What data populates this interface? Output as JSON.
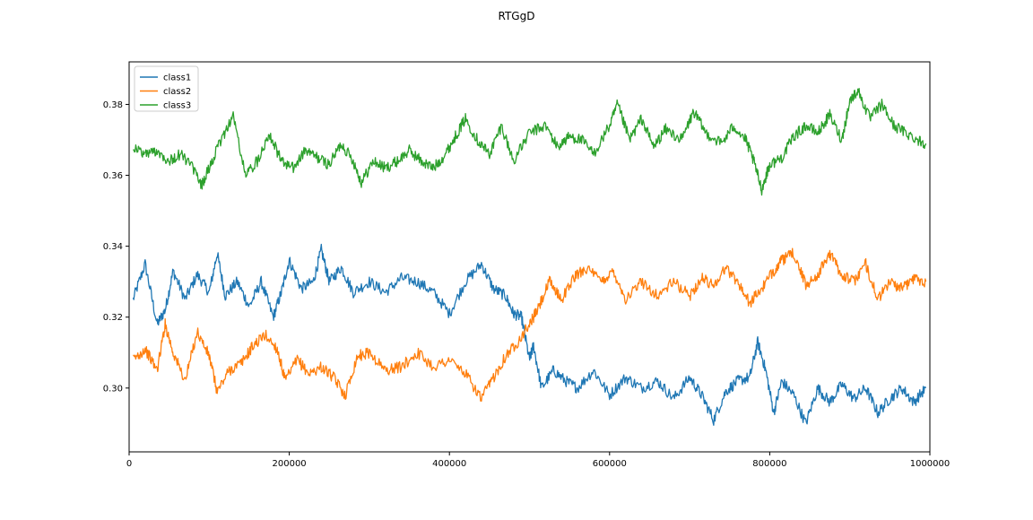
{
  "chart_data": {
    "type": "line",
    "title": "RTGgD",
    "xlabel": "",
    "ylabel": "",
    "xlim": [
      0,
      1000000
    ],
    "ylim": [
      0.282,
      0.392
    ],
    "x_ticks": [
      0,
      200000,
      400000,
      600000,
      800000,
      1000000
    ],
    "x_tick_labels": [
      "0",
      "200000",
      "400000",
      "600000",
      "800000",
      "1000000"
    ],
    "y_ticks": [
      0.3,
      0.32,
      0.34,
      0.36,
      0.38
    ],
    "y_tick_labels": [
      "0.30",
      "0.32",
      "0.34",
      "0.36",
      "0.38"
    ],
    "grid": false,
    "legend_position": "upper-left",
    "series": [
      {
        "name": "class1",
        "color": "#1f77b4",
        "x": [
          5000,
          20000,
          35000,
          45000,
          55000,
          70000,
          85000,
          100000,
          110000,
          120000,
          135000,
          150000,
          165000,
          180000,
          190000,
          200000,
          215000,
          230000,
          240000,
          250000,
          265000,
          280000,
          300000,
          320000,
          340000,
          360000,
          380000,
          400000,
          420000,
          440000,
          455000,
          470000,
          480000,
          490000,
          500000,
          505000,
          515000,
          530000,
          545000,
          560000,
          580000,
          600000,
          620000,
          640000,
          660000,
          680000,
          700000,
          715000,
          730000,
          745000,
          760000,
          775000,
          785000,
          795000,
          805000,
          815000,
          830000,
          845000,
          860000,
          875000,
          890000,
          905000,
          920000,
          935000,
          950000,
          965000,
          980000,
          995000
        ],
        "y": [
          0.325,
          0.335,
          0.318,
          0.322,
          0.333,
          0.325,
          0.332,
          0.327,
          0.338,
          0.326,
          0.33,
          0.323,
          0.33,
          0.32,
          0.327,
          0.336,
          0.328,
          0.33,
          0.339,
          0.33,
          0.334,
          0.327,
          0.33,
          0.327,
          0.331,
          0.33,
          0.327,
          0.321,
          0.33,
          0.335,
          0.328,
          0.326,
          0.321,
          0.32,
          0.308,
          0.312,
          0.3,
          0.305,
          0.302,
          0.3,
          0.305,
          0.298,
          0.303,
          0.3,
          0.302,
          0.297,
          0.303,
          0.298,
          0.291,
          0.299,
          0.302,
          0.303,
          0.313,
          0.305,
          0.293,
          0.302,
          0.298,
          0.29,
          0.3,
          0.296,
          0.301,
          0.297,
          0.3,
          0.293,
          0.297,
          0.3,
          0.296,
          0.3
        ]
      },
      {
        "name": "class2",
        "color": "#ff7f0e",
        "x": [
          5000,
          20000,
          35000,
          45000,
          55000,
          70000,
          85000,
          100000,
          110000,
          125000,
          140000,
          155000,
          170000,
          185000,
          195000,
          210000,
          225000,
          240000,
          255000,
          270000,
          285000,
          300000,
          320000,
          340000,
          360000,
          380000,
          400000,
          420000,
          440000,
          455000,
          470000,
          485000,
          500000,
          510000,
          525000,
          540000,
          555000,
          570000,
          590000,
          605000,
          620000,
          640000,
          660000,
          680000,
          700000,
          715000,
          730000,
          745000,
          760000,
          775000,
          790000,
          805000,
          815000,
          830000,
          845000,
          860000,
          875000,
          890000,
          905000,
          920000,
          935000,
          950000,
          965000,
          980000,
          995000
        ],
        "y": [
          0.308,
          0.311,
          0.305,
          0.318,
          0.31,
          0.302,
          0.316,
          0.309,
          0.299,
          0.305,
          0.307,
          0.312,
          0.315,
          0.311,
          0.302,
          0.308,
          0.304,
          0.306,
          0.303,
          0.298,
          0.309,
          0.31,
          0.305,
          0.306,
          0.31,
          0.306,
          0.308,
          0.304,
          0.297,
          0.303,
          0.309,
          0.313,
          0.318,
          0.322,
          0.33,
          0.325,
          0.331,
          0.334,
          0.33,
          0.333,
          0.325,
          0.33,
          0.326,
          0.33,
          0.326,
          0.331,
          0.329,
          0.334,
          0.33,
          0.324,
          0.328,
          0.333,
          0.336,
          0.338,
          0.329,
          0.332,
          0.338,
          0.332,
          0.33,
          0.335,
          0.325,
          0.33,
          0.328,
          0.331,
          0.33
        ]
      },
      {
        "name": "class3",
        "color": "#2ca02c",
        "x": [
          5000,
          20000,
          35000,
          50000,
          65000,
          80000,
          90000,
          100000,
          115000,
          130000,
          145000,
          160000,
          175000,
          190000,
          205000,
          220000,
          235000,
          250000,
          265000,
          280000,
          290000,
          305000,
          320000,
          335000,
          350000,
          365000,
          380000,
          395000,
          410000,
          420000,
          435000,
          450000,
          465000,
          480000,
          500000,
          520000,
          535000,
          550000,
          565000,
          580000,
          600000,
          610000,
          625000,
          640000,
          655000,
          670000,
          690000,
          705000,
          720000,
          740000,
          755000,
          770000,
          780000,
          790000,
          800000,
          815000,
          830000,
          845000,
          860000,
          875000,
          890000,
          900000,
          910000,
          925000,
          940000,
          955000,
          970000,
          985000,
          995000
        ],
        "y": [
          0.368,
          0.366,
          0.367,
          0.364,
          0.366,
          0.362,
          0.357,
          0.362,
          0.37,
          0.377,
          0.36,
          0.364,
          0.372,
          0.364,
          0.362,
          0.367,
          0.365,
          0.363,
          0.369,
          0.364,
          0.358,
          0.364,
          0.362,
          0.364,
          0.367,
          0.364,
          0.362,
          0.366,
          0.372,
          0.376,
          0.37,
          0.366,
          0.374,
          0.364,
          0.372,
          0.374,
          0.368,
          0.371,
          0.37,
          0.366,
          0.374,
          0.38,
          0.37,
          0.376,
          0.368,
          0.373,
          0.37,
          0.378,
          0.372,
          0.369,
          0.374,
          0.37,
          0.364,
          0.356,
          0.363,
          0.365,
          0.371,
          0.374,
          0.372,
          0.377,
          0.37,
          0.381,
          0.384,
          0.376,
          0.38,
          0.374,
          0.372,
          0.37,
          0.369
        ]
      }
    ]
  }
}
